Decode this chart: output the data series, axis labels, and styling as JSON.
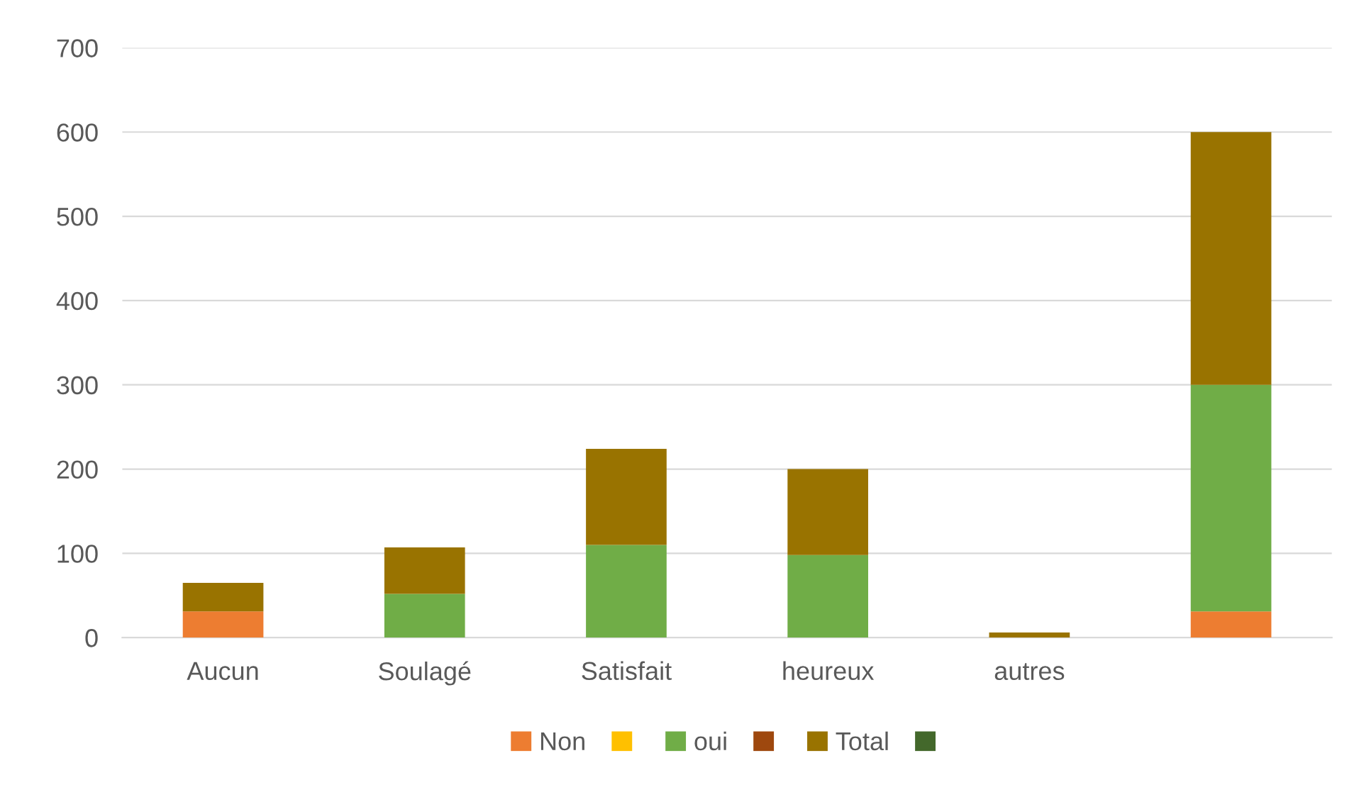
{
  "chart_data": {
    "type": "bar",
    "stacked": true,
    "categories": [
      "Aucun",
      "Soulagé",
      "Satisfait",
      "heureux",
      "autres",
      null
    ],
    "series": [
      {
        "name": "Non",
        "color": "#ed7d31",
        "values": [
          31,
          null,
          null,
          null,
          null,
          31
        ]
      },
      {
        "color": "#ffc000",
        "values": [
          null,
          null,
          null,
          null,
          null,
          null
        ]
      },
      {
        "name": "oui",
        "color": "#70ad47",
        "values": [
          null,
          52,
          110,
          98,
          null,
          269
        ]
      },
      {
        "color": "#9e480e",
        "values": [
          null,
          null,
          null,
          null,
          null,
          null
        ]
      },
      {
        "name": "Total",
        "color": "#997300",
        "values": [
          34,
          55,
          114,
          102,
          6,
          300
        ]
      },
      {
        "color": "#43682b",
        "values": [
          null,
          null,
          null,
          null,
          null,
          null
        ]
      }
    ],
    "ylim": [
      0,
      700
    ],
    "yticks": [
      0,
      100,
      200,
      300,
      400,
      500,
      600,
      700
    ],
    "grid": "y",
    "legend": "bottom"
  }
}
